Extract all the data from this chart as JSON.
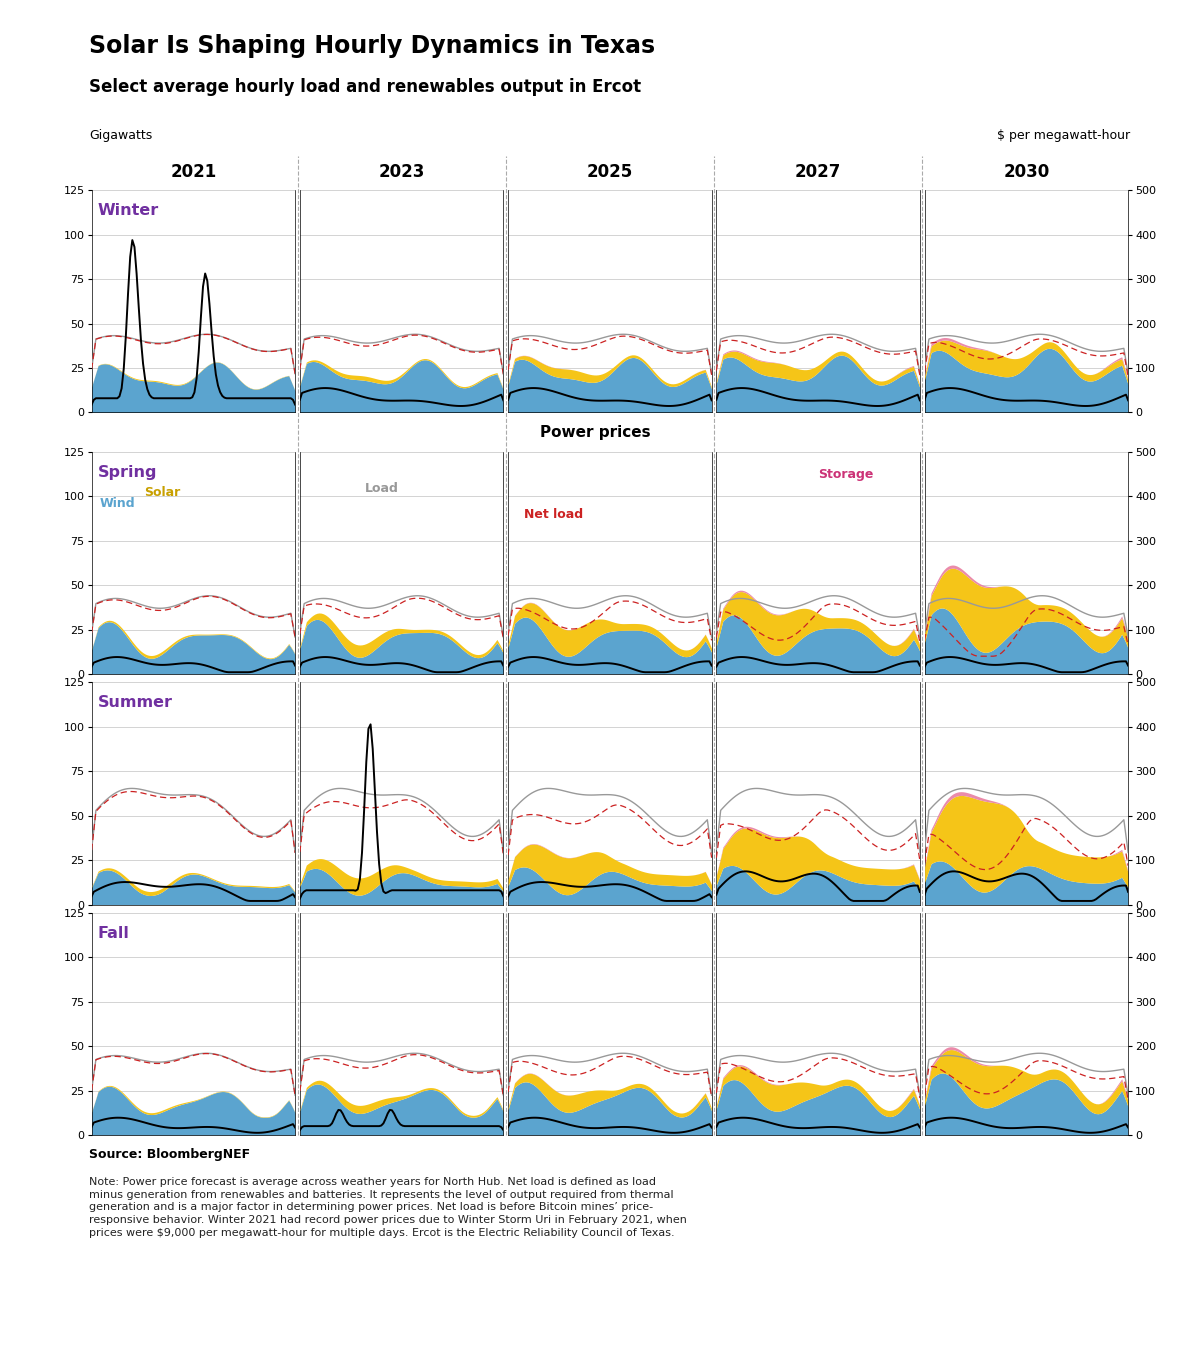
{
  "title": "Solar Is Shaping Hourly Dynamics in Texas",
  "subtitle": "Select average hourly load and renewables output in Ercot",
  "ylabel_left": "Gigawatts",
  "ylabel_right": "$ per megawatt-hour",
  "seasons": [
    "Winter",
    "Spring",
    "Summer",
    "Fall"
  ],
  "years": [
    "2021",
    "2023",
    "2025",
    "2027",
    "2030"
  ],
  "wind_color": "#5BA4CF",
  "solar_color": "#F5C518",
  "storage_color": "#E87EA1",
  "net_load_color": "#CC2222",
  "load_color": "#999999",
  "bg_color": "#ffffff",
  "grid_color": "#cccccc",
  "divider_color": "#aaaaaa",
  "season_label_color": "#7030A0",
  "source_text": "Source: BloombergNEF",
  "note_text": "Note: Power price forecast is average across weather years for North Hub. Net load is defined as load\nminus generation from renewables and batteries. It represents the level of output required from thermal\ngeneration and is a major factor in determining power prices. Net load is before Bitcoin mines’ price-\nresponsive behavior. Winter 2021 had record power prices due to Winter Storm Uri in February 2021, when\nprices were $9,000 per megawatt-hour for multiple days. Ercot is the Electric Reliability Council of Texas.",
  "power_prices_label": "Power prices"
}
